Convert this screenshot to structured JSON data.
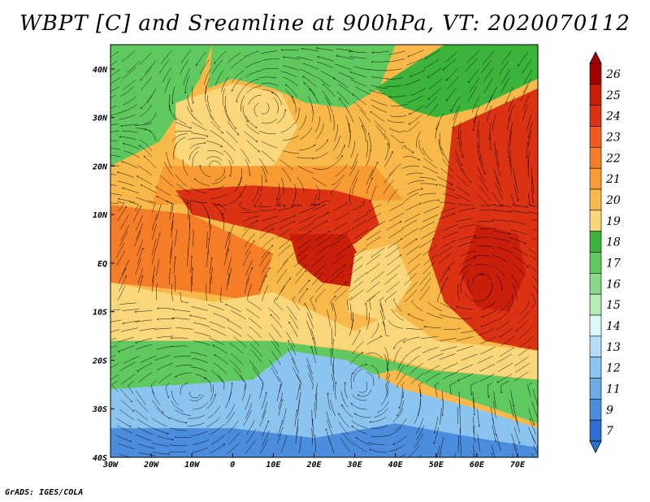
{
  "title": "WBPT [C] and Sreamline at 900hPa, VT: 2020070112",
  "credit": "GrADS: IGES/COLA",
  "map": {
    "variable": "wet-bulb potential temperature",
    "level": "900hPa",
    "lon_range": [
      -30,
      75
    ],
    "lat_range": [
      -40,
      45
    ],
    "lon_ticks": [
      {
        "value": -30,
        "label": "30W"
      },
      {
        "value": -20,
        "label": "20W"
      },
      {
        "value": -10,
        "label": "10W"
      },
      {
        "value": 0,
        "label": "0"
      },
      {
        "value": 10,
        "label": "10E"
      },
      {
        "value": 20,
        "label": "20E"
      },
      {
        "value": 30,
        "label": "30E"
      },
      {
        "value": 40,
        "label": "40E"
      },
      {
        "value": 50,
        "label": "50E"
      },
      {
        "value": 60,
        "label": "60E"
      },
      {
        "value": 70,
        "label": "70E"
      }
    ],
    "lat_ticks": [
      {
        "value": 40,
        "label": "40N"
      },
      {
        "value": 30,
        "label": "30N"
      },
      {
        "value": 20,
        "label": "20N"
      },
      {
        "value": 10,
        "label": "10N"
      },
      {
        "value": 0,
        "label": "EQ"
      },
      {
        "value": -10,
        "label": "10S"
      },
      {
        "value": -20,
        "label": "20S"
      },
      {
        "value": -30,
        "label": "30S"
      },
      {
        "value": -40,
        "label": "40S"
      }
    ]
  },
  "colorbar": {
    "labels": [
      "26",
      "25",
      "24",
      "23",
      "22",
      "21",
      "20",
      "19",
      "18",
      "17",
      "16",
      "15",
      "14",
      "13",
      "12",
      "11",
      "9",
      "7"
    ],
    "colors": [
      "#a50000",
      "#c81e0a",
      "#dc3214",
      "#f05a1e",
      "#f57d28",
      "#f79b32",
      "#f8b84a",
      "#f9d77a",
      "#3cb43c",
      "#5fc85f",
      "#8ad88a",
      "#b4eeb4",
      "#dcf8f8",
      "#b4dcf8",
      "#8cc4f0",
      "#6eaae6",
      "#4b8cdc",
      "#2e6ed2"
    ]
  },
  "regions": [
    {
      "name": "north-atlantic-green",
      "color": "#5fc85f",
      "points": [
        [
          -30,
          45
        ],
        [
          -5,
          45
        ],
        [
          -8,
          38
        ],
        [
          -14,
          30
        ],
        [
          -18,
          25
        ],
        [
          -30,
          20
        ]
      ]
    },
    {
      "name": "mediterranean-green",
      "color": "#5fc85f",
      "points": [
        [
          -5,
          45
        ],
        [
          40,
          45
        ],
        [
          36,
          36
        ],
        [
          28,
          32
        ],
        [
          18,
          33
        ],
        [
          10,
          36
        ],
        [
          0,
          38
        ],
        [
          -6,
          36
        ]
      ]
    },
    {
      "name": "middle-east-green",
      "color": "#3cb43c",
      "points": [
        [
          35,
          36
        ],
        [
          52,
          45
        ],
        [
          75,
          45
        ],
        [
          75,
          38
        ],
        [
          60,
          32
        ],
        [
          50,
          30
        ],
        [
          42,
          32
        ]
      ]
    },
    {
      "name": "sahara-tan",
      "color": "#f9d77a",
      "points": [
        [
          -14,
          33
        ],
        [
          0,
          37
        ],
        [
          12,
          35
        ],
        [
          16,
          28
        ],
        [
          10,
          20
        ],
        [
          -5,
          17
        ],
        [
          -14,
          22
        ]
      ]
    },
    {
      "name": "egypt-tan",
      "color": "#f8b84a",
      "points": [
        [
          20,
          31
        ],
        [
          34,
          31
        ],
        [
          36,
          24
        ],
        [
          30,
          18
        ],
        [
          20,
          20
        ]
      ]
    },
    {
      "name": "arabia-tan",
      "color": "#f8b84a",
      "points": [
        [
          36,
          30
        ],
        [
          50,
          30
        ],
        [
          58,
          25
        ],
        [
          56,
          18
        ],
        [
          45,
          14
        ],
        [
          38,
          18
        ]
      ]
    },
    {
      "name": "sahel-orange",
      "color": "#f79b32",
      "points": [
        [
          -17,
          20
        ],
        [
          35,
          20
        ],
        [
          42,
          13
        ],
        [
          -20,
          12
        ]
      ]
    },
    {
      "name": "sahel-red",
      "color": "#dc3214",
      "points": [
        [
          -14,
          15
        ],
        [
          5,
          16
        ],
        [
          25,
          15
        ],
        [
          34,
          13
        ],
        [
          36,
          8
        ],
        [
          30,
          4
        ],
        [
          22,
          2
        ],
        [
          10,
          6
        ],
        [
          0,
          8
        ],
        [
          -10,
          10
        ]
      ]
    },
    {
      "name": "congo-red",
      "color": "#c81e0a",
      "points": [
        [
          14,
          6
        ],
        [
          28,
          6
        ],
        [
          32,
          0
        ],
        [
          30,
          -5
        ],
        [
          22,
          -4
        ],
        [
          16,
          0
        ]
      ]
    },
    {
      "name": "indian-red",
      "color": "#dc3214",
      "points": [
        [
          54,
          28
        ],
        [
          75,
          36
        ],
        [
          75,
          -18
        ],
        [
          62,
          -16
        ],
        [
          52,
          -8
        ],
        [
          48,
          2
        ],
        [
          52,
          12
        ]
      ]
    },
    {
      "name": "cyclone-core",
      "color": "#c81e0a",
      "points": [
        [
          60,
          8
        ],
        [
          70,
          6
        ],
        [
          72,
          -2
        ],
        [
          68,
          -10
        ],
        [
          60,
          -9
        ],
        [
          56,
          -2
        ]
      ]
    },
    {
      "name": "gulf-guinea-orange",
      "color": "#f57d28",
      "points": [
        [
          -30,
          12
        ],
        [
          -10,
          10
        ],
        [
          0,
          6
        ],
        [
          10,
          2
        ],
        [
          6,
          -8
        ],
        [
          -8,
          -6
        ],
        [
          -30,
          -4
        ]
      ]
    },
    {
      "name": "south-atlantic-tan",
      "color": "#f9d77a",
      "points": [
        [
          -30,
          -4
        ],
        [
          -5,
          -8
        ],
        [
          10,
          -6
        ],
        [
          20,
          -10
        ],
        [
          30,
          -14
        ],
        [
          40,
          -10
        ],
        [
          50,
          -16
        ],
        [
          75,
          -18
        ],
        [
          75,
          -24
        ],
        [
          50,
          -22
        ],
        [
          30,
          -18
        ],
        [
          10,
          -16
        ],
        [
          -30,
          -16
        ]
      ]
    },
    {
      "name": "south-green",
      "color": "#5fc85f",
      "points": [
        [
          -30,
          -16
        ],
        [
          10,
          -16
        ],
        [
          28,
          -18
        ],
        [
          48,
          -22
        ],
        [
          75,
          -24
        ],
        [
          75,
          -33
        ],
        [
          50,
          -26
        ],
        [
          40,
          -22
        ],
        [
          25,
          -25
        ],
        [
          10,
          -28
        ],
        [
          -30,
          -26
        ]
      ]
    },
    {
      "name": "south-blue",
      "color": "#8cc4f0",
      "points": [
        [
          -30,
          -26
        ],
        [
          5,
          -24
        ],
        [
          14,
          -18
        ],
        [
          28,
          -20
        ],
        [
          42,
          -26
        ],
        [
          60,
          -30
        ],
        [
          75,
          -34
        ],
        [
          75,
          -40
        ],
        [
          -30,
          -40
        ]
      ]
    },
    {
      "name": "deep-south-blue",
      "color": "#4b8cdc",
      "points": [
        [
          -30,
          -34
        ],
        [
          0,
          -34
        ],
        [
          20,
          -36
        ],
        [
          40,
          -33
        ],
        [
          60,
          -36
        ],
        [
          75,
          -38
        ],
        [
          75,
          -40
        ],
        [
          -30,
          -40
        ]
      ]
    },
    {
      "name": "east-africa-tan",
      "color": "#f9d77a",
      "points": [
        [
          30,
          2
        ],
        [
          40,
          4
        ],
        [
          44,
          -4
        ],
        [
          38,
          -12
        ],
        [
          28,
          -10
        ]
      ]
    }
  ]
}
